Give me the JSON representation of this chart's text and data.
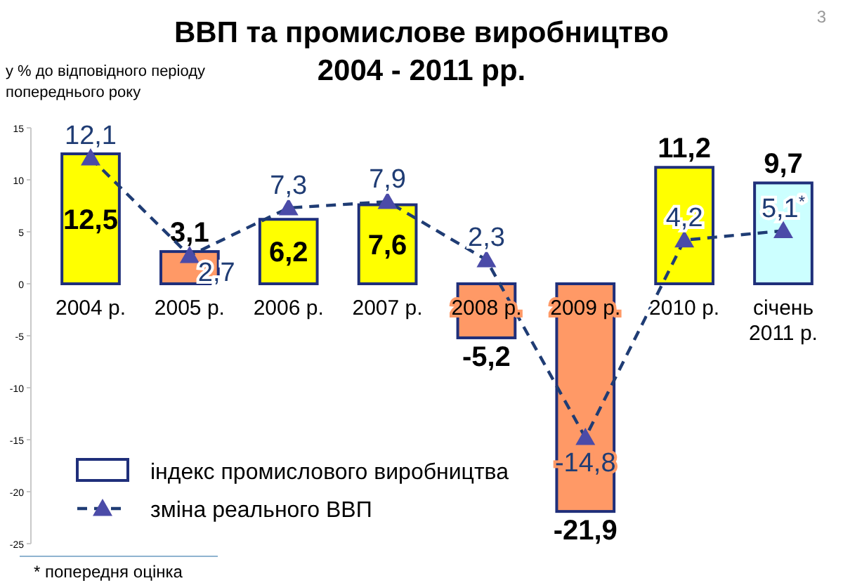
{
  "chart_data": {
    "type": "bar",
    "title": "ВВП та промислове виробництво",
    "subtitle": "2004 - 2011 рр.",
    "ylabel": "у % до відповідного періоду попереднього року",
    "categories": [
      "2004 р.",
      "2005 р.",
      "2006 р.",
      "2007 р.",
      "2008 р.",
      "2009 р.",
      "2010 р.",
      "січень 2011 р."
    ],
    "series": [
      {
        "name": "індекс  промислового виробництва",
        "colors": [
          "#ffff00",
          "#ff9966",
          "#ffff00",
          "#ffff00",
          "#ff9966",
          "#ff9966",
          "#ffff00",
          "#ccffff"
        ],
        "values": [
          12.5,
          3.1,
          6.2,
          7.6,
          -5.2,
          -21.9,
          11.2,
          9.7
        ],
        "value_labels": [
          "12,5",
          "3,1",
          "6,2",
          "7,6",
          "-5,2",
          "-21,9",
          "11,2",
          "9,7"
        ]
      },
      {
        "name": "зміна реального ВВП",
        "type": "line",
        "color": "#1f3c74",
        "marker": "triangle",
        "line_style": "dashed",
        "values": [
          12.1,
          2.7,
          7.3,
          7.9,
          2.3,
          -14.8,
          4.2,
          5.1
        ],
        "value_labels": [
          "12,1",
          "2,7",
          "7,3",
          "7,9",
          "2,3",
          "-14,8",
          "4,2",
          "5,1$^{*}$"
        ]
      }
    ],
    "ylim": [
      -25,
      15
    ],
    "yticks": [
      -25,
      -20,
      -15,
      -10,
      -5,
      0,
      5,
      10,
      15
    ],
    "grid": false,
    "legend": "bottom left",
    "annotations": [
      "3",
      "* попередня оцінка"
    ]
  }
}
